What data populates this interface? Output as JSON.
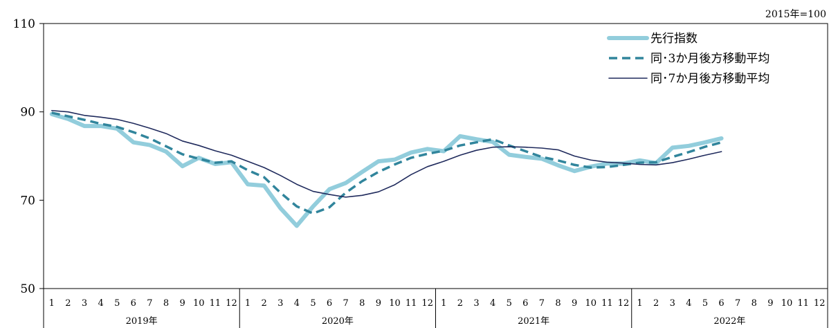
{
  "chart_data": {
    "type": "line",
    "unit_note": "2015年=100",
    "ylim": [
      50,
      110
    ],
    "yticks": [
      50,
      70,
      90,
      110
    ],
    "months": [
      "1",
      "2",
      "3",
      "4",
      "5",
      "6",
      "7",
      "8",
      "9",
      "10",
      "11",
      "12",
      "1",
      "2",
      "3",
      "4",
      "5",
      "6",
      "7",
      "8",
      "9",
      "10",
      "11",
      "12",
      "1",
      "2",
      "3",
      "4",
      "5",
      "6",
      "7",
      "8",
      "9",
      "10",
      "11",
      "12",
      "1",
      "2",
      "3",
      "4",
      "5",
      "6",
      "7",
      "8",
      "9",
      "10",
      "11",
      "12"
    ],
    "years": [
      "2019年",
      "2020年",
      "2021年",
      "2022年"
    ],
    "legend_position": "top-right",
    "series": [
      {
        "name": "先行指数",
        "style": "thick",
        "color": "#92cddc",
        "values": [
          89.5,
          88.4,
          86.8,
          86.8,
          86.2,
          83.1,
          82.5,
          81.0,
          77.7,
          79.6,
          78.2,
          78.6,
          73.6,
          73.3,
          68.2,
          64.2,
          68.6,
          72.5,
          73.9,
          76.4,
          78.8,
          79.2,
          80.8,
          81.6,
          81.1,
          84.5,
          83.8,
          83.2,
          80.3,
          79.8,
          79.4,
          77.9,
          76.6,
          77.6,
          78.3,
          78.3,
          79.0,
          78.4,
          81.9,
          82.3,
          83.1,
          84.0,
          null,
          null,
          null,
          null,
          null,
          null
        ]
      },
      {
        "name": "同･3か月後方移動平均",
        "style": "dashed",
        "color": "#31859c",
        "values": [
          89.8,
          89.0,
          88.2,
          87.3,
          86.6,
          85.4,
          84.0,
          82.2,
          80.4,
          79.4,
          78.5,
          78.8,
          76.8,
          75.2,
          71.7,
          68.6,
          67.0,
          68.4,
          71.7,
          74.3,
          76.4,
          78.1,
          79.6,
          80.5,
          81.2,
          82.4,
          83.1,
          83.8,
          82.4,
          81.1,
          79.8,
          79.0,
          78.0,
          77.4,
          77.5,
          78.0,
          78.5,
          78.6,
          79.8,
          80.9,
          82.1,
          83.1,
          null,
          null,
          null,
          null,
          null,
          null
        ]
      },
      {
        "name": "同･7か月後方移動平均",
        "style": "thin",
        "color": "#1f2a5c",
        "values": [
          90.3,
          90.0,
          89.2,
          88.8,
          88.3,
          87.4,
          86.3,
          85.1,
          83.4,
          82.4,
          81.2,
          80.2,
          78.8,
          77.4,
          75.6,
          73.6,
          72.0,
          71.3,
          70.7,
          71.1,
          71.9,
          73.5,
          75.8,
          77.6,
          78.8,
          80.2,
          81.3,
          82.0,
          82.1,
          82.0,
          81.8,
          81.4,
          80.0,
          79.1,
          78.6,
          78.4,
          78.1,
          78.0,
          78.5,
          79.3,
          80.2,
          81.0,
          null,
          null,
          null,
          null,
          null,
          null
        ]
      }
    ]
  }
}
